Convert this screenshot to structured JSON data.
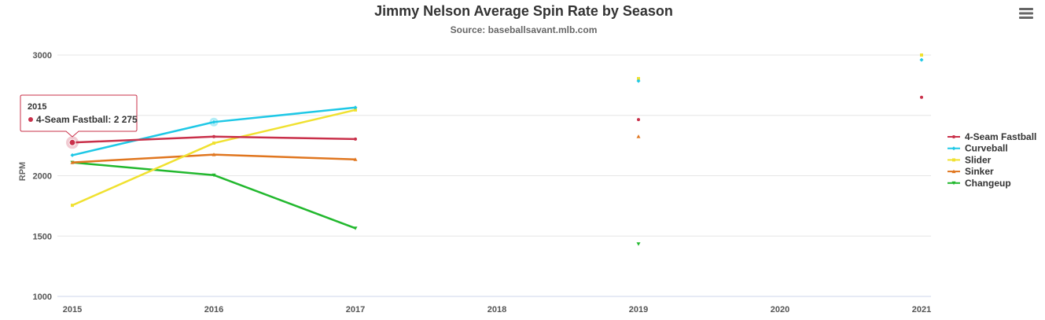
{
  "chart_data": {
    "type": "line",
    "title": "Jimmy Nelson Average Spin Rate by Season",
    "subtitle": "Source: baseballsavant.mlb.com",
    "xlabel": "",
    "ylabel": "RPM",
    "categories": [
      "2015",
      "2016",
      "2017",
      "2018",
      "2019",
      "2020",
      "2021"
    ],
    "yticks": [
      "1000",
      "1500",
      "2000",
      "3000"
    ],
    "ylim": [
      1000,
      3000
    ],
    "grid": true,
    "legend_position": "right",
    "series": [
      {
        "name": "4-Seam Fastball",
        "color": "#c9304a",
        "marker": "circle",
        "values": [
          2275,
          2324,
          2304,
          null,
          2465,
          null,
          2650
        ]
      },
      {
        "name": "Curveball",
        "color": "#1ec8e6",
        "marker": "diamond",
        "values": [
          2170,
          2445,
          2565,
          null,
          2785,
          null,
          2960
        ]
      },
      {
        "name": "Slider",
        "color": "#f0e130",
        "marker": "square",
        "values": [
          1755,
          2270,
          2545,
          null,
          2805,
          null,
          3000
        ]
      },
      {
        "name": "Sinker",
        "color": "#e0761f",
        "marker": "triangle",
        "values": [
          2110,
          2175,
          2135,
          null,
          2325,
          null,
          null
        ]
      },
      {
        "name": "Changeup",
        "color": "#22b82e",
        "marker": "triangle-down",
        "values": [
          2110,
          2005,
          1565,
          null,
          1435,
          null,
          null
        ]
      }
    ],
    "tooltip": {
      "x_label": "2015",
      "series_label": "4-Seam Fastball:",
      "value_text": "2 275",
      "point": {
        "series": 0,
        "x": "2015"
      }
    }
  },
  "menu_icon": "hamburger-menu-icon"
}
